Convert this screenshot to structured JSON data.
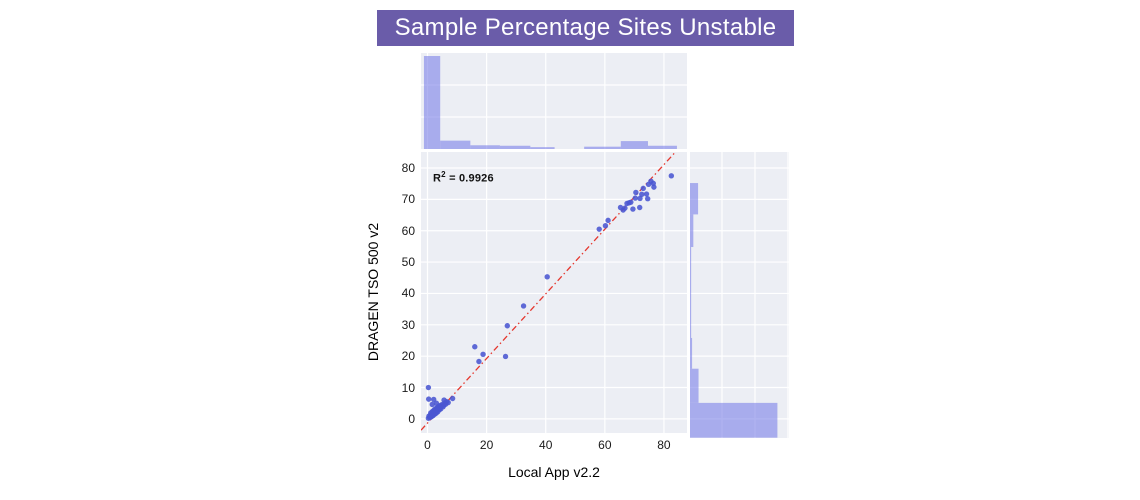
{
  "title": {
    "text": "Sample Percentage Sites Unstable",
    "bg_color": "#6a5ca9",
    "text_color": "#ffffff"
  },
  "chart_data": {
    "type": "scatter",
    "title": "Sample Percentage Sites Unstable",
    "xlabel": "Local App v2.2",
    "ylabel": "DRAGEN TSO 500 v2",
    "xlim": [
      -2.2,
      87.8
    ],
    "ylim": [
      -4.5,
      85.1
    ],
    "xticks": [
      0,
      20,
      40,
      60,
      80
    ],
    "yticks": [
      0,
      10,
      20,
      30,
      40,
      50,
      60,
      70,
      80
    ],
    "grid": true,
    "annotation": {
      "base": "R",
      "sup": "2",
      "rest": " = 0.9926"
    },
    "r_squared": 0.9926,
    "fit_line": {
      "x1": -2.2,
      "y1": -3.6,
      "x2": 83.9,
      "y2": 85.1,
      "style": "dash-dot"
    },
    "points": [
      [
        0.3,
        0.2
      ],
      [
        0.5,
        0.9
      ],
      [
        0.8,
        0.4
      ],
      [
        1,
        1.2
      ],
      [
        1.1,
        1.9
      ],
      [
        1.3,
        0.7
      ],
      [
        1.5,
        1.4
      ],
      [
        1.6,
        2.3
      ],
      [
        1.8,
        1
      ],
      [
        1.9,
        1.7
      ],
      [
        2,
        2.6
      ],
      [
        2.1,
        1.3
      ],
      [
        2.3,
        2
      ],
      [
        2.4,
        3
      ],
      [
        2.6,
        1.6
      ],
      [
        2.7,
        2.4
      ],
      [
        2.9,
        3.3
      ],
      [
        3,
        1.9
      ],
      [
        3.1,
        2.7
      ],
      [
        3.3,
        3.6
      ],
      [
        3.5,
        2.3
      ],
      [
        3.6,
        3.1
      ],
      [
        3.8,
        4
      ],
      [
        4,
        2.9
      ],
      [
        4.1,
        3.5
      ],
      [
        4.3,
        4.3
      ],
      [
        4.5,
        3.2
      ],
      [
        4.7,
        4
      ],
      [
        5,
        4.6
      ],
      [
        5.3,
        3.9
      ],
      [
        5.6,
        4.4
      ],
      [
        5.9,
        5.1
      ],
      [
        6.2,
        4.7
      ],
      [
        6.5,
        5.5
      ],
      [
        7,
        5.2
      ],
      [
        1.6,
        4.6
      ],
      [
        3,
        5
      ],
      [
        0.4,
        6.3
      ],
      [
        2.1,
        6.2
      ],
      [
        5.6,
        6
      ],
      [
        8.5,
        6.5
      ],
      [
        0.3,
        10
      ],
      [
        16,
        23
      ],
      [
        17.4,
        18.3
      ],
      [
        18.8,
        20.6
      ],
      [
        26.4,
        19.9
      ],
      [
        27,
        29.7
      ],
      [
        32.5,
        36
      ],
      [
        40.5,
        45.3
      ],
      [
        58.1,
        60.5
      ],
      [
        60.2,
        61.6
      ],
      [
        61.1,
        63.3
      ],
      [
        65.3,
        67.4
      ],
      [
        66.2,
        66.6
      ],
      [
        66.8,
        67.2
      ],
      [
        67.5,
        68.7
      ],
      [
        68.2,
        68.9
      ],
      [
        68.8,
        69.1
      ],
      [
        69.5,
        66.9
      ],
      [
        70.3,
        70.4
      ],
      [
        70.5,
        72.2
      ],
      [
        71.8,
        67.4
      ],
      [
        71.9,
        70.3
      ],
      [
        72.5,
        71.6
      ],
      [
        73,
        73.5
      ],
      [
        74.1,
        71.7
      ],
      [
        74.5,
        70.2
      ],
      [
        74.8,
        74.8
      ],
      [
        75.6,
        75.8
      ],
      [
        76.4,
        75.1
      ],
      [
        76.6,
        73.9
      ],
      [
        82.5,
        77.5
      ]
    ],
    "marginal_top": {
      "bars": [
        {
          "x0": -1.2,
          "x1": 4.3,
          "h": 1.0
        },
        {
          "x0": 4.3,
          "x1": 14.5,
          "h": 0.09
        },
        {
          "x0": 14.5,
          "x1": 24.5,
          "h": 0.04
        },
        {
          "x0": 24.5,
          "x1": 34.8,
          "h": 0.035
        },
        {
          "x0": 34.8,
          "x1": 43,
          "h": 0.02
        },
        {
          "x0": 53,
          "x1": 65.4,
          "h": 0.025
        },
        {
          "x0": 65.4,
          "x1": 74.6,
          "h": 0.085
        },
        {
          "x0": 74.6,
          "x1": 84.4,
          "h": 0.035
        }
      ]
    },
    "marginal_right": {
      "bars": [
        {
          "y0": 65.2,
          "y1": 75.2,
          "h": 0.085
        },
        {
          "y0": 54.8,
          "y1": 65.2,
          "h": 0.035
        },
        {
          "y0": 25.8,
          "y1": 54.8,
          "h": 0.012
        },
        {
          "y0": 16,
          "y1": 25.8,
          "h": 0.022
        },
        {
          "y0": 5.1,
          "y1": 16,
          "h": 0.09
        },
        {
          "y0": -6.0,
          "y1": 5.1,
          "h": 0.92
        }
      ]
    },
    "colors": {
      "point": "#4a57d2",
      "bar": "#7b80e8",
      "panel_bg": "#eceef4",
      "grid": "#ffffff",
      "fit_line": "#e5372e"
    }
  }
}
